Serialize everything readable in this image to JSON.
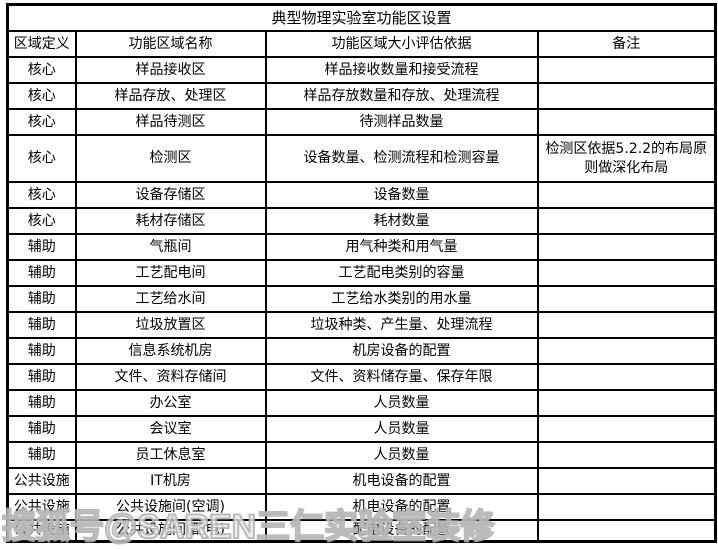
{
  "title": "典型物理实验室功能区设置",
  "columns": [
    "区域定义",
    "功能区域名称",
    "功能区域大小评估依据",
    "备注"
  ],
  "rows": [
    {
      "zone": "核心",
      "name": "样品接收区",
      "basis": "样品接收数量和接受流程",
      "note": ""
    },
    {
      "zone": "核心",
      "name": "样品存放、处理区",
      "basis": "样品存放数量和存放、处理流程",
      "note": ""
    },
    {
      "zone": "核心",
      "name": "样品待测区",
      "basis": "待测样品数量",
      "note": ""
    },
    {
      "zone": "核心",
      "name": "检测区",
      "basis": "设备数量、检测流程和检测容量",
      "note": "检测区依据5.2.2的布局原则做深化布局"
    },
    {
      "zone": "核心",
      "name": "设备存储区",
      "basis": "设备数量",
      "note": ""
    },
    {
      "zone": "核心",
      "name": "耗材存储区",
      "basis": "耗材数量",
      "note": ""
    },
    {
      "zone": "辅助",
      "name": "气瓶间",
      "basis": "用气种类和用气量",
      "note": ""
    },
    {
      "zone": "辅助",
      "name": "工艺配电间",
      "basis": "工艺配电类别的容量",
      "note": ""
    },
    {
      "zone": "辅助",
      "name": "工艺给水间",
      "basis": "工艺给水类别的用水量",
      "note": ""
    },
    {
      "zone": "辅助",
      "name": "垃圾放置区",
      "basis": "垃圾种类、产生量、处理流程",
      "note": ""
    },
    {
      "zone": "辅助",
      "name": "信息系统机房",
      "basis": "机房设备的配置",
      "note": ""
    },
    {
      "zone": "辅助",
      "name": "文件、资料存储间",
      "basis": "文件、资料储存量、保存年限",
      "note": ""
    },
    {
      "zone": "辅助",
      "name": "办公室",
      "basis": "人员数量",
      "note": ""
    },
    {
      "zone": "辅助",
      "name": "会议室",
      "basis": "人员数量",
      "note": ""
    },
    {
      "zone": "辅助",
      "name": "员工休息室",
      "basis": "人员数量",
      "note": ""
    },
    {
      "zone": "公共设施",
      "name": "IT机房",
      "basis": "机电设备的配置",
      "note": ""
    },
    {
      "zone": "公共设施",
      "name": "公共设施间(空调)",
      "basis": "机电设备的配置",
      "note": ""
    },
    {
      "zone": "公共设施",
      "name": "公共设施间(配电)",
      "basis": "配电设备的配置",
      "note": ""
    }
  ],
  "watermark": "搜狐号@SAREN三仁实验室装修"
}
